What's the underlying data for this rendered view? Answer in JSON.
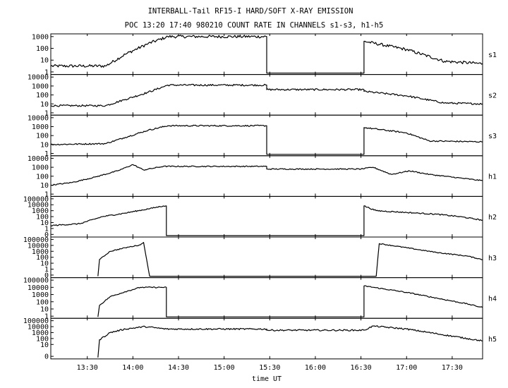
{
  "chart_data": {
    "type": "line",
    "title": "INTERBALL-Tail RF15-I HARD/SOFT X-RAY EMISSION",
    "subtitle": "POC 13:20 17:40 980210  COUNT RATE IN CHANNELS s1-s3, h1-h5",
    "xlabel": "time UT",
    "xlim": [
      "13:06",
      "17:50"
    ],
    "x_ticks": [
      "13:30",
      "14:00",
      "14:30",
      "15:00",
      "15:30",
      "16:00",
      "16:30",
      "17:00",
      "17:30"
    ],
    "y_scale": "log",
    "grid": false,
    "panels": [
      {
        "name": "s1",
        "y_ticks": [
          "1000",
          "100",
          "10",
          "1"
        ],
        "y_decades": [
          3,
          2,
          1,
          0
        ],
        "ylim_decades": [
          -0.1,
          3.05
        ],
        "noise": 0.25,
        "points": [
          [
            "13:06",
            0.5
          ],
          [
            "13:42",
            0.5
          ],
          [
            "13:55",
            1.5
          ],
          [
            "14:10",
            2.4
          ],
          [
            "14:23",
            3.0
          ],
          [
            "15:28",
            3.0
          ],
          [
            "15:28",
            -0.1
          ],
          [
            "16:32",
            -0.1
          ],
          [
            "16:32",
            2.6
          ],
          [
            "17:00",
            1.9
          ],
          [
            "17:25",
            0.9
          ],
          [
            "17:50",
            0.7
          ]
        ]
      },
      {
        "name": "s2",
        "y_ticks": [
          "10000",
          "1000",
          "100",
          "10",
          "1"
        ],
        "y_decades": [
          4,
          3,
          2,
          1,
          0
        ],
        "ylim_decades": [
          -0.1,
          4.05
        ],
        "noise": 0.2,
        "points": [
          [
            "13:06",
            0.8
          ],
          [
            "13:42",
            0.8
          ],
          [
            "13:55",
            1.5
          ],
          [
            "14:10",
            2.3
          ],
          [
            "14:23",
            3.1
          ],
          [
            "15:28",
            3.1
          ],
          [
            "15:28",
            2.6
          ],
          [
            "16:32",
            2.6
          ],
          [
            "16:32",
            2.4
          ],
          [
            "17:00",
            1.9
          ],
          [
            "17:25",
            1.1
          ],
          [
            "17:50",
            1.0
          ]
        ]
      },
      {
        "name": "s3",
        "y_ticks": [
          "10000",
          "1000",
          "100",
          "10",
          "1"
        ],
        "y_decades": [
          4,
          3,
          2,
          1,
          0
        ],
        "ylim_decades": [
          -0.1,
          4.05
        ],
        "noise": 0.15,
        "points": [
          [
            "13:06",
            1.0
          ],
          [
            "13:42",
            1.1
          ],
          [
            "13:55",
            1.8
          ],
          [
            "14:10",
            2.6
          ],
          [
            "14:23",
            3.1
          ],
          [
            "15:28",
            3.1
          ],
          [
            "15:28",
            -0.1
          ],
          [
            "16:32",
            -0.1
          ],
          [
            "16:32",
            2.9
          ],
          [
            "17:00",
            2.3
          ],
          [
            "17:15",
            1.4
          ],
          [
            "17:50",
            1.3
          ]
        ]
      },
      {
        "name": "h1",
        "y_ticks": [
          "10000",
          "1000",
          "100",
          "10",
          "1"
        ],
        "y_decades": [
          4,
          3,
          2,
          1,
          0
        ],
        "ylim_decades": [
          -0.1,
          4.05
        ],
        "noise": 0.12,
        "points": [
          [
            "13:06",
            1.0
          ],
          [
            "13:20",
            1.3
          ],
          [
            "13:35",
            1.9
          ],
          [
            "13:50",
            2.6
          ],
          [
            "14:00",
            3.3
          ],
          [
            "14:07",
            2.7
          ],
          [
            "14:20",
            3.1
          ],
          [
            "15:28",
            3.1
          ],
          [
            "15:28",
            2.8
          ],
          [
            "16:30",
            2.8
          ],
          [
            "16:38",
            3.0
          ],
          [
            "16:50",
            2.2
          ],
          [
            "17:02",
            2.6
          ],
          [
            "17:15",
            2.2
          ],
          [
            "17:50",
            1.5
          ]
        ]
      },
      {
        "name": "h2",
        "y_ticks": [
          "100000",
          "10000",
          "1000",
          "100",
          "10",
          "1",
          "0"
        ],
        "y_decades": [
          5,
          4,
          3,
          2,
          1,
          0,
          -1
        ],
        "ylim_decades": [
          -1.2,
          5.05
        ],
        "noise": 0.2,
        "points": [
          [
            "13:06",
            0.5
          ],
          [
            "13:25",
            0.8
          ],
          [
            "13:40",
            2.0
          ],
          [
            "13:55",
            2.6
          ],
          [
            "14:10",
            3.3
          ],
          [
            "14:20",
            3.8
          ],
          [
            "14:22",
            3.8
          ],
          [
            "14:22",
            -1.2
          ],
          [
            "16:32",
            -1.2
          ],
          [
            "16:32",
            3.8
          ],
          [
            "16:40",
            3.0
          ],
          [
            "17:00",
            2.7
          ],
          [
            "17:20",
            2.4
          ],
          [
            "17:35",
            2.0
          ],
          [
            "17:50",
            1.4
          ]
        ]
      },
      {
        "name": "h3",
        "y_ticks": [
          "100000",
          "10000",
          "1000",
          "100",
          "10",
          "1",
          "0"
        ],
        "y_decades": [
          5,
          4,
          3,
          2,
          1,
          0,
          -1
        ],
        "ylim_decades": [
          -1.2,
          5.05
        ],
        "noise": 0.15,
        "points": [
          [
            "13:37",
            -1.2
          ],
          [
            "13:38",
            1.6
          ],
          [
            "13:45",
            3.0
          ],
          [
            "13:55",
            3.6
          ],
          [
            "14:05",
            4.1
          ],
          [
            "14:07",
            4.5
          ],
          [
            "14:11",
            -1.2
          ],
          [
            "16:40",
            -1.2
          ],
          [
            "16:42",
            4.3
          ],
          [
            "17:00",
            3.6
          ],
          [
            "17:20",
            2.8
          ],
          [
            "17:40",
            2.2
          ],
          [
            "17:50",
            1.6
          ]
        ]
      },
      {
        "name": "h4",
        "y_ticks": [
          "100000",
          "10000",
          "1000",
          "100",
          "10",
          "1"
        ],
        "y_decades": [
          5,
          4,
          3,
          2,
          1,
          0
        ],
        "ylim_decades": [
          -0.1,
          5.05
        ],
        "noise": 0.15,
        "points": [
          [
            "13:37",
            -0.1
          ],
          [
            "13:38",
            1.5
          ],
          [
            "13:45",
            2.7
          ],
          [
            "13:55",
            3.4
          ],
          [
            "14:05",
            4.0
          ],
          [
            "14:22",
            4.0
          ],
          [
            "14:22",
            -0.1
          ],
          [
            "16:32",
            -0.1
          ],
          [
            "16:32",
            4.2
          ],
          [
            "17:00",
            3.3
          ],
          [
            "17:20",
            2.5
          ],
          [
            "17:40",
            1.7
          ],
          [
            "17:50",
            1.2
          ]
        ]
      },
      {
        "name": "h5",
        "y_ticks": [
          "100000",
          "10000",
          "1000",
          "100",
          "10",
          "0"
        ],
        "y_decades": [
          5,
          4,
          3,
          2,
          1,
          -1
        ],
        "ylim_decades": [
          -1.2,
          5.05
        ],
        "noise": 0.25,
        "points": [
          [
            "13:37",
            -1.2
          ],
          [
            "13:38",
            1.8
          ],
          [
            "13:45",
            3.0
          ],
          [
            "13:55",
            3.6
          ],
          [
            "14:08",
            4.0
          ],
          [
            "14:22",
            3.6
          ],
          [
            "15:28",
            3.6
          ],
          [
            "15:28",
            3.4
          ],
          [
            "16:32",
            3.4
          ],
          [
            "16:38",
            4.1
          ],
          [
            "17:00",
            3.6
          ],
          [
            "17:20",
            2.8
          ],
          [
            "17:40",
            2.0
          ],
          [
            "17:50",
            1.6
          ]
        ]
      }
    ]
  }
}
